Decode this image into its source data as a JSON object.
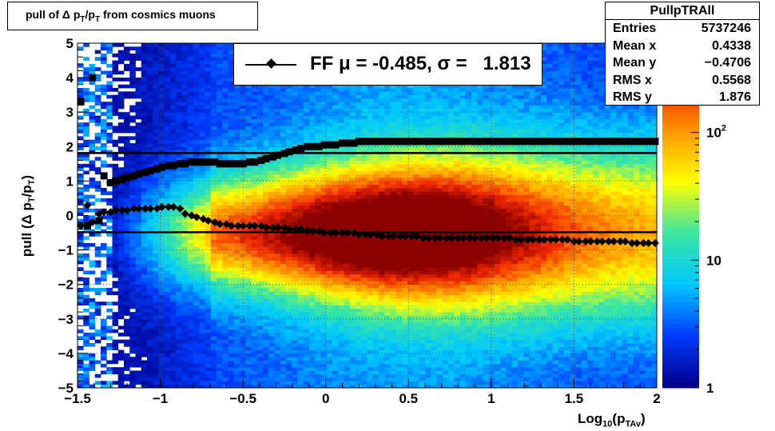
{
  "title": {
    "prefix": "pull of ",
    "delta": "Δ p",
    "t1": "T",
    "slash": "/p",
    "t2": "T",
    "suffix": " from cosmics muons"
  },
  "stats": {
    "name": "PullpTRAll",
    "rows": [
      {
        "label": "Entries",
        "value": "5737246"
      },
      {
        "label": "Mean x",
        "value": "0.4338"
      },
      {
        "label": "Mean y",
        "value": "−0.4706"
      },
      {
        "label": "RMS x",
        "value": "0.5568"
      },
      {
        "label": "RMS y",
        "value": "1.876"
      }
    ]
  },
  "legend": {
    "text": "FF μ = -0.485, σ =   1.813"
  },
  "ylabel": {
    "prefix": "pull (Δ p",
    "s1": "T",
    "mid": "/p",
    "s2": "T",
    "suffix": ")"
  },
  "xlabel": {
    "prefix": "Log",
    "sub1": "10",
    "mid": "(p",
    "sub2": "TAv",
    "suffix": ")"
  },
  "chart_data": {
    "type": "heatmap",
    "xlim": [
      -1.5,
      2
    ],
    "ylim": [
      -5,
      5
    ],
    "z_scale": "log",
    "zlim": [
      1,
      500
    ],
    "x_ticks": [
      "−1.5",
      "−1",
      "−0.5",
      "0",
      "0.5",
      "1",
      "1.5",
      "2"
    ],
    "x_tick_values": [
      -1.5,
      -1,
      -0.5,
      0,
      0.5,
      1,
      1.5,
      2
    ],
    "y_ticks": [
      "5",
      "4",
      "3",
      "2",
      "1",
      "0",
      "−1",
      "−2",
      "−3",
      "−4",
      "−5"
    ],
    "y_tick_values": [
      5,
      4,
      3,
      2,
      1,
      0,
      -1,
      -2,
      -3,
      -4,
      -5
    ],
    "z_ticks": [
      "1",
      "10",
      "10^2"
    ],
    "z_tick_values": [
      1,
      10,
      100
    ],
    "grid": true,
    "colors": {
      "low": "#00008c",
      "mid": "#ffff00",
      "high": "#8b0000"
    },
    "hlines": [
      1.813,
      -0.485
    ],
    "sigma_points": {
      "x": [
        -1.48,
        -1.44,
        -1.41,
        -1.37,
        -1.34,
        -1.3,
        -1.27,
        -1.23,
        -1.2,
        -1.16,
        -1.13,
        -1.09,
        -1.06,
        -1.02,
        -0.99,
        -0.95,
        -0.92,
        -0.88,
        -0.85,
        -0.81,
        -0.78,
        -0.74,
        -0.71,
        -0.67,
        -0.64,
        -0.6,
        -0.57,
        -0.53,
        -0.5,
        -0.46,
        -0.43,
        -0.39,
        -0.36,
        -0.32,
        -0.29,
        -0.25,
        -0.22,
        -0.18,
        -0.15,
        -0.11,
        -0.08,
        -0.04,
        -0.01,
        0.03,
        0.06,
        0.1,
        0.13,
        0.17,
        0.2,
        0.24,
        0.27,
        0.31,
        0.34,
        0.38,
        0.41,
        0.45,
        0.48,
        0.52,
        0.55,
        0.59,
        0.62,
        0.66,
        0.69,
        0.73,
        0.76,
        0.8,
        0.83,
        0.87,
        0.9,
        0.94,
        0.97,
        1.01,
        1.04,
        1.08,
        1.11,
        1.15,
        1.18,
        1.22,
        1.25,
        1.29,
        1.32,
        1.36,
        1.39,
        1.43,
        1.46,
        1.5,
        1.53,
        1.57,
        1.6,
        1.64,
        1.67,
        1.71,
        1.74,
        1.78,
        1.81,
        1.85,
        1.88,
        1.92,
        1.95,
        1.99
      ],
      "y": [
        3.3,
        -0.3,
        4.0,
        -0.15,
        1.15,
        0.95,
        1.0,
        1.05,
        1.1,
        1.15,
        1.2,
        1.25,
        1.3,
        1.35,
        1.4,
        1.45,
        1.45,
        1.5,
        1.5,
        1.55,
        1.55,
        1.55,
        1.55,
        1.55,
        1.5,
        1.5,
        1.5,
        1.5,
        1.5,
        1.55,
        1.55,
        1.6,
        1.65,
        1.7,
        1.75,
        1.8,
        1.85,
        1.9,
        1.95,
        2.0,
        2.0,
        2.0,
        2.05,
        2.05,
        2.05,
        2.1,
        2.1,
        2.1,
        2.15,
        2.15,
        2.15,
        2.15,
        2.15,
        2.15,
        2.15,
        2.15,
        2.15,
        2.15,
        2.15,
        2.15,
        2.15,
        2.15,
        2.15,
        2.15,
        2.15,
        2.15,
        2.15,
        2.15,
        2.15,
        2.15,
        2.15,
        2.15,
        2.15,
        2.15,
        2.15,
        2.15,
        2.15,
        2.15,
        2.15,
        2.15,
        2.15,
        2.15,
        2.15,
        2.15,
        2.15,
        2.15,
        2.15,
        2.15,
        2.15,
        2.15,
        2.15,
        2.15,
        2.15,
        2.15,
        2.15,
        2.15,
        2.15,
        2.15,
        2.15,
        2.15
      ]
    },
    "mean_points": {
      "x": [
        -1.48,
        -1.44,
        -1.41,
        -1.37,
        -1.34,
        -1.3,
        -1.27,
        -1.23,
        -1.2,
        -1.16,
        -1.13,
        -1.09,
        -1.06,
        -1.02,
        -0.99,
        -0.95,
        -0.92,
        -0.88,
        -0.85,
        -0.81,
        -0.78,
        -0.74,
        -0.71,
        -0.67,
        -0.64,
        -0.6,
        -0.57,
        -0.53,
        -0.5,
        -0.46,
        -0.43,
        -0.39,
        -0.36,
        -0.32,
        -0.29,
        -0.25,
        -0.22,
        -0.18,
        -0.15,
        -0.11,
        -0.08,
        -0.04,
        -0.01,
        0.03,
        0.06,
        0.1,
        0.13,
        0.17,
        0.2,
        0.24,
        0.27,
        0.31,
        0.34,
        0.38,
        0.41,
        0.45,
        0.48,
        0.52,
        0.55,
        0.59,
        0.62,
        0.66,
        0.69,
        0.73,
        0.76,
        0.8,
        0.83,
        0.87,
        0.9,
        0.94,
        0.97,
        1.01,
        1.04,
        1.08,
        1.11,
        1.15,
        1.18,
        1.22,
        1.25,
        1.29,
        1.32,
        1.36,
        1.39,
        1.43,
        1.46,
        1.5,
        1.53,
        1.57,
        1.6,
        1.64,
        1.67,
        1.71,
        1.74,
        1.78,
        1.81,
        1.85,
        1.88,
        1.92,
        1.95,
        1.99
      ],
      "y": [
        -0.3,
        0.3,
        -0.2,
        0.05,
        0.1,
        0.1,
        0.15,
        0.15,
        0.15,
        0.2,
        0.2,
        0.2,
        0.2,
        0.2,
        0.25,
        0.25,
        0.25,
        0.2,
        0.05,
        0.0,
        -0.05,
        -0.1,
        -0.15,
        -0.2,
        -0.25,
        -0.25,
        -0.3,
        -0.3,
        -0.3,
        -0.3,
        -0.3,
        -0.3,
        -0.35,
        -0.35,
        -0.35,
        -0.35,
        -0.4,
        -0.4,
        -0.4,
        -0.45,
        -0.45,
        -0.45,
        -0.5,
        -0.5,
        -0.5,
        -0.5,
        -0.5,
        -0.5,
        -0.55,
        -0.55,
        -0.55,
        -0.55,
        -0.6,
        -0.6,
        -0.6,
        -0.6,
        -0.6,
        -0.6,
        -0.6,
        -0.65,
        -0.65,
        -0.65,
        -0.65,
        -0.65,
        -0.65,
        -0.65,
        -0.65,
        -0.65,
        -0.65,
        -0.65,
        -0.65,
        -0.65,
        -0.65,
        -0.65,
        -0.65,
        -0.7,
        -0.7,
        -0.7,
        -0.7,
        -0.7,
        -0.7,
        -0.7,
        -0.7,
        -0.7,
        -0.7,
        -0.75,
        -0.75,
        -0.75,
        -0.75,
        -0.75,
        -0.75,
        -0.75,
        -0.75,
        -0.75,
        -0.75,
        -0.8,
        -0.8,
        -0.8,
        -0.8,
        -0.8
      ]
    }
  }
}
